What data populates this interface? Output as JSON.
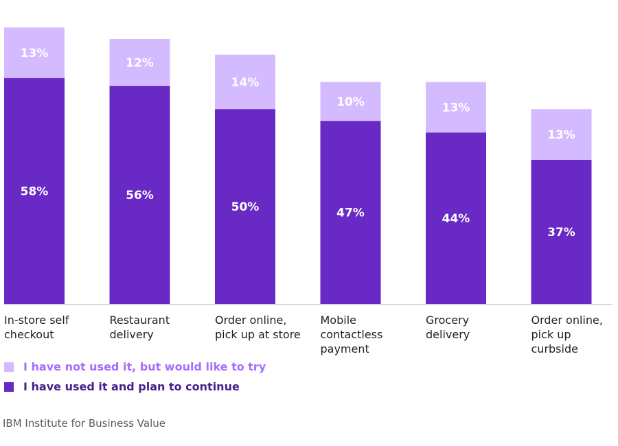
{
  "chart_data": {
    "type": "bar",
    "stacked": true,
    "categories": [
      [
        "In-store self",
        "checkout"
      ],
      [
        "Restaurant",
        "delivery"
      ],
      [
        "Order online,",
        "pick up at store"
      ],
      [
        "Mobile",
        "contactless",
        "payment"
      ],
      [
        "Grocery",
        "delivery"
      ],
      [
        "Order online,",
        "pick up",
        "curbside"
      ]
    ],
    "series": [
      {
        "name": "I have used it and plan to continue",
        "values": [
          58,
          56,
          50,
          47,
          44,
          37
        ],
        "color": "#6929c4"
      },
      {
        "name": "I have not used it, but would like to try",
        "values": [
          13,
          12,
          14,
          10,
          13,
          13
        ],
        "color": "#d4bbff"
      }
    ],
    "ylim": [
      0,
      71
    ],
    "value_suffix": "%",
    "legend_text_colors": [
      "#491d8b",
      "#a56eff"
    ],
    "grid": false,
    "legend_position": "bottom-left"
  },
  "legend": {
    "items": [
      {
        "label": "I have not used it, but would like to try",
        "color": "#d4bbff",
        "text_color": "#a56eff"
      },
      {
        "label": "I have used it and plan to continue",
        "color": "#6929c4",
        "text_color": "#491d8b"
      }
    ]
  },
  "source": "IBM Institute for Business Value"
}
